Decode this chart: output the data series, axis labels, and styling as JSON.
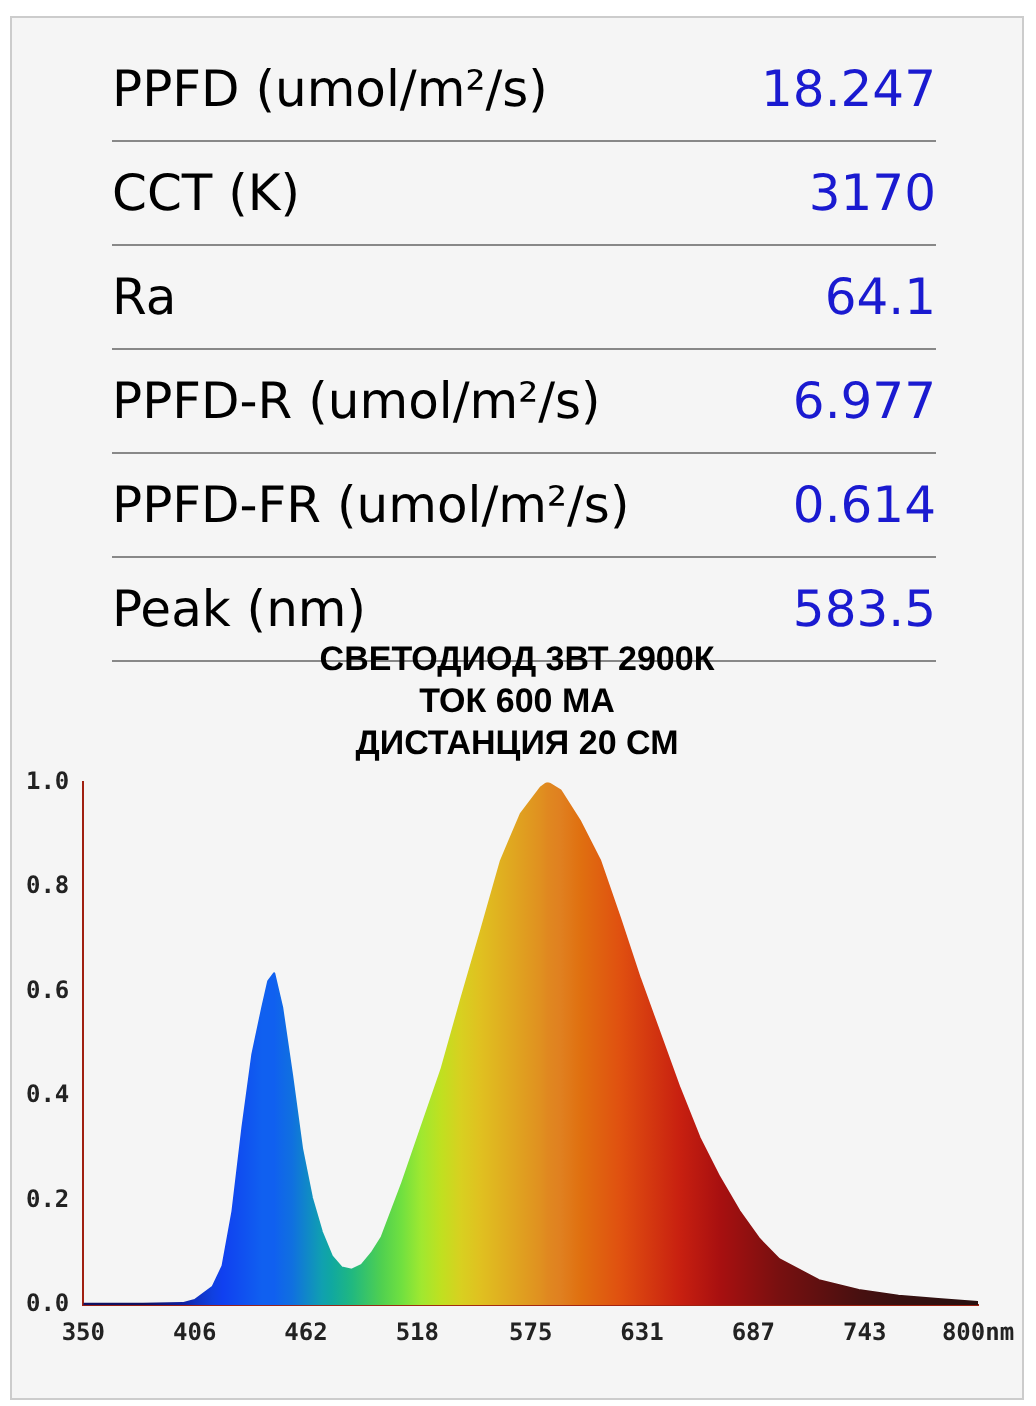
{
  "chart_data": {
    "type": "area",
    "title": "СВЕТОДИОД 3ВТ 2900К",
    "subtitle": "ТОК 600 МА\nДИСТАНЦИЯ  20 СМ",
    "annotations": [
      "PPFD (umol/m²/s)",
      "18.247",
      "CCT (K)",
      "3170",
      "Ra",
      "64.1",
      "PPFD-R (umol/m²/s)",
      "6.977",
      "PPFD-FR (umol/m²/s)",
      "0.614",
      "Peak (nm)",
      "583.5"
    ],
    "x": [
      350,
      380,
      400,
      406,
      415,
      420,
      425,
      430,
      435,
      440,
      443,
      446,
      450,
      455,
      460,
      465,
      470,
      475,
      480,
      485,
      490,
      495,
      500,
      510,
      520,
      530,
      540,
      550,
      560,
      570,
      580,
      583.5,
      590,
      600,
      610,
      620,
      630,
      640,
      650,
      660,
      670,
      680,
      690,
      700,
      720,
      740,
      760,
      780,
      800
    ],
    "values": [
      0.003,
      0.003,
      0.004,
      0.01,
      0.035,
      0.075,
      0.18,
      0.34,
      0.48,
      0.57,
      0.62,
      0.635,
      0.57,
      0.44,
      0.3,
      0.205,
      0.14,
      0.094,
      0.072,
      0.068,
      0.077,
      0.1,
      0.13,
      0.23,
      0.34,
      0.45,
      0.585,
      0.716,
      0.85,
      0.94,
      0.99,
      1.0,
      0.985,
      0.925,
      0.85,
      0.74,
      0.625,
      0.52,
      0.415,
      0.32,
      0.245,
      0.18,
      0.127,
      0.088,
      0.048,
      0.029,
      0.018,
      0.012,
      0.006
    ],
    "colors": [
      "#101060",
      "#101060",
      "#1020a0",
      "#1030c0",
      "#1040e0",
      "#1040f0",
      "#1048f0",
      "#1050f0",
      "#1058f0",
      "#1060f0",
      "#1060f0",
      "#1060f0",
      "#1068e8",
      "#1070e0",
      "#1080d0",
      "#1090c0",
      "#10a0b0",
      "#10a8a0",
      "#18b090",
      "#20b880",
      "#30c070",
      "#40c860",
      "#50d050",
      "#70e040",
      "#a0e830",
      "#c0e020",
      "#d8d020",
      "#e0c020",
      "#e0b020",
      "#e0a020",
      "#e09020",
      "#e08820",
      "#e08020",
      "#e07010",
      "#e06010",
      "#e05010",
      "#d84010",
      "#d03010",
      "#c82010",
      "#b81810",
      "#a81010",
      "#981010",
      "#881010",
      "#781010",
      "#601010",
      "#481010",
      "#381010",
      "#301010",
      "#281010"
    ],
    "xlim": [
      350,
      800
    ],
    "xticks": [
      350,
      406,
      462,
      518,
      575,
      631,
      687,
      743,
      {
        "value": 800,
        "label": "800nm"
      }
    ],
    "ylim": [
      0,
      1
    ],
    "yticks": [
      {
        "value": 0,
        "label": "0.0"
      },
      {
        "value": 0.2,
        "label": "0.2"
      },
      {
        "value": 0.4,
        "label": "0.4"
      },
      {
        "value": 0.6,
        "label": "0.6"
      },
      {
        "value": 0.8,
        "label": "0.8"
      },
      {
        "value": 1,
        "label": "1.0"
      }
    ],
    "grid": false,
    "legend": false
  }
}
